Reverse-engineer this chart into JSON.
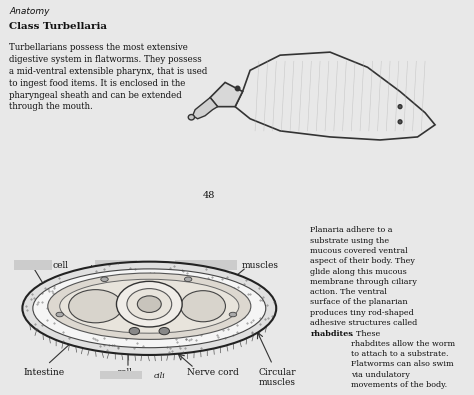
{
  "bg_color": "#e8e8e8",
  "top_bg": "#ffffff",
  "bottom_bg": "#ffffff",
  "divider_color": "#5a5a5a",
  "title_top": "Anatomy",
  "title_bold": "Class Turbellaria",
  "top_text": "Turbellarians possess the most extensive\ndigestive system in flatworms. They possess\na mid-ventral extensible pharynx, that is used\nto ingest food items. It is enclosed in the\npharyngeal sheath and can be extended\nthrough the mouth.",
  "page_number": "48",
  "right_text_part1": "Planaria adhere to a\nsubstrate using the\nmucous covered ventral\naspect of their body. They\nglide along this mucous\nmembrane through ciliary\naction. The ventral\nsurface of the planarian\nproduces tiny rod-shaped\nadhesive structures called",
  "right_text_part2": ". These\nrhabdites allow the worm\nto attach to a substrate.\nFlatworms can also swim\nvia undulatory\nmovements of the body.",
  "rhabdites_word": "rhabdites",
  "p_label": "; P",
  "cili_label": "cili"
}
